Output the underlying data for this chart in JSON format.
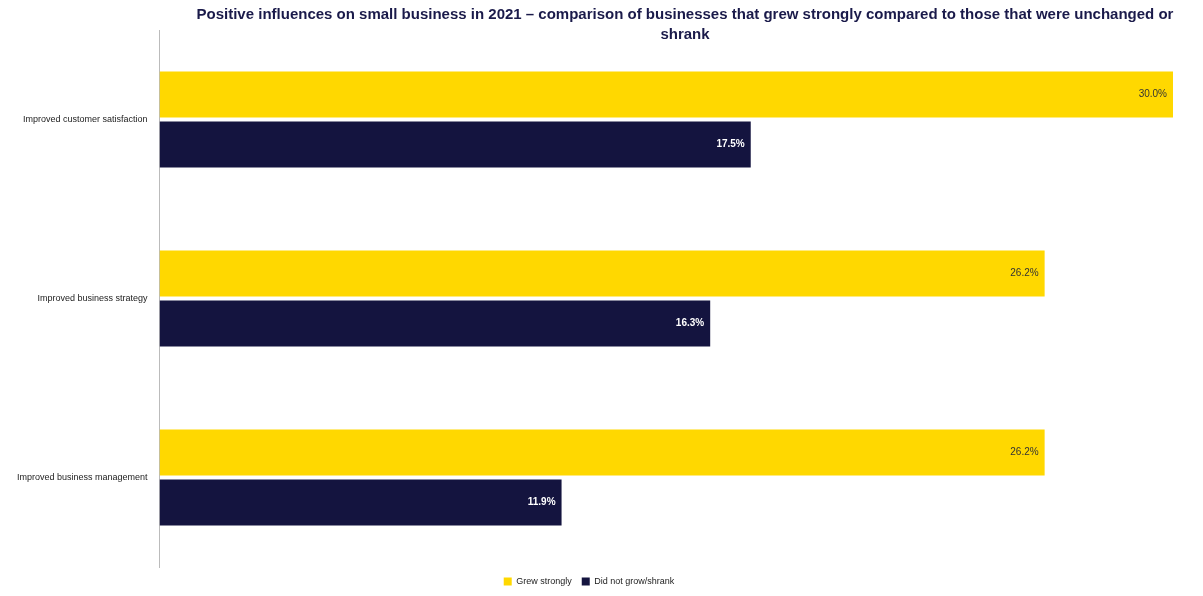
{
  "chart_data": {
    "type": "bar",
    "orientation": "horizontal",
    "title": "Positive influences on small business in 2021 – comparison of businesses that grew strongly compared to those that were unchanged or shrank",
    "categories": [
      "Improved customer satisfaction",
      "Improved business strategy",
      "Improved business management"
    ],
    "series": [
      {
        "name": "Grew strongly",
        "color": "#ffd800",
        "values": [
          30.0,
          26.2,
          26.2
        ],
        "value_labels": [
          "30.0%",
          "26.2%",
          "26.2%"
        ]
      },
      {
        "name": "Did not grow/shrank",
        "color": "#14143f",
        "values": [
          17.5,
          16.3,
          11.9
        ],
        "value_labels": [
          "17.5%",
          "16.3%",
          "11.9%"
        ]
      }
    ],
    "legend": "bottom"
  }
}
